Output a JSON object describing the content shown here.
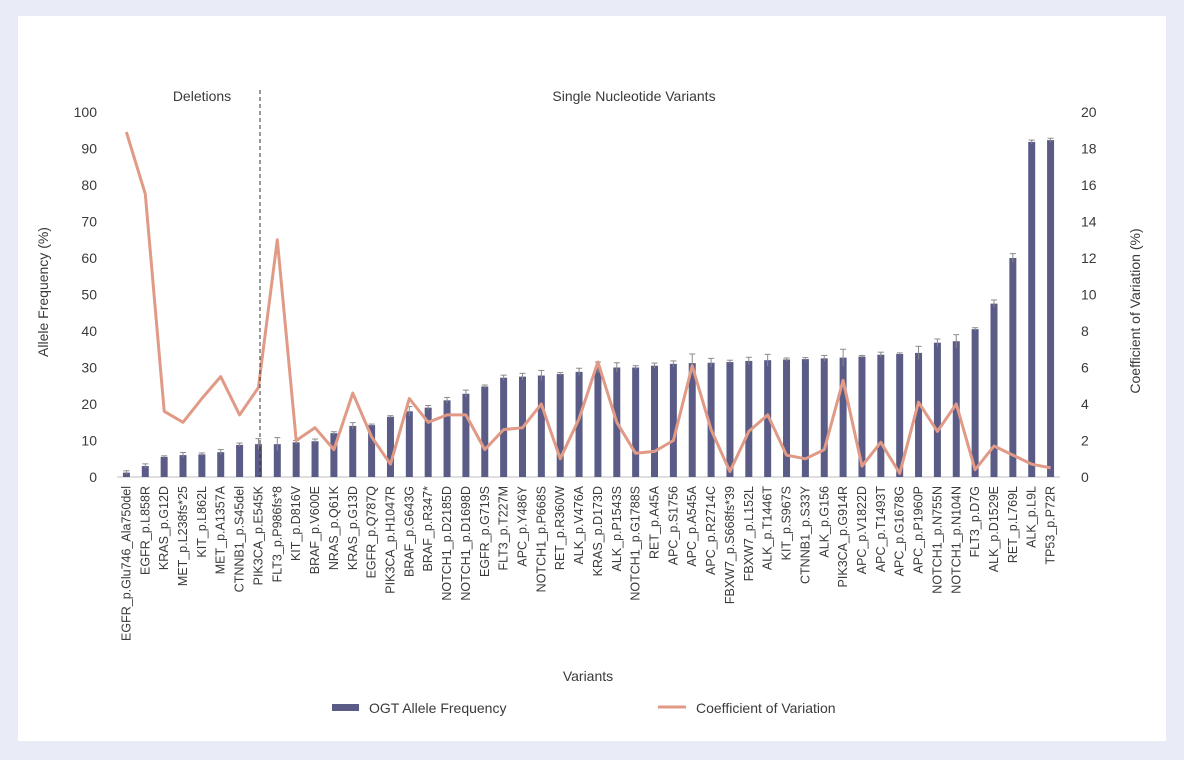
{
  "chart_data": {
    "type": "bar",
    "xlabel": "Variants",
    "ylabel": "Allele Frequency (%)",
    "y2label": "Coefficient of Variation (%)",
    "ylim": [
      0,
      100
    ],
    "y2lim": [
      0,
      20
    ],
    "yticks": [
      0,
      10,
      20,
      30,
      40,
      50,
      60,
      70,
      80,
      90,
      100
    ],
    "y2ticks": [
      0,
      2,
      4,
      6,
      8,
      10,
      12,
      14,
      16,
      18,
      20
    ],
    "grid": false,
    "legend_position": "bottom",
    "sections": [
      {
        "label": "Deletions",
        "end_index": 7
      },
      {
        "label": "Single Nucleotide Variants",
        "start_index": 8
      }
    ],
    "categories": [
      "EGFR_p.Glu746_Ala750del",
      "EGFR_p.L858R",
      "KRAS_p.G12D",
      "MET_p.L238fs*25",
      "KIT_p.L862L",
      "MET_p.A1357A",
      "CTNNB1_p.S45del",
      "PIK3CA_p.E545K",
      "FLT3_p.P986fs*8",
      "KIT_p.D816V",
      "BRAF_p.V600E",
      "NRAS_p.Q61K",
      "KRAS_p.G13D",
      "EGFR_p.Q787Q",
      "PIK3CA_p.H1047R",
      "BRAF_p.G643G",
      "BRAF_p.R347*",
      "NOTCH1_p.D2185D",
      "NOTCH1_p.D1698D",
      "EGFR_p.G719S",
      "FLT3_p.T227M",
      "APC_p.Y486Y",
      "NOTCH1_p.P668S",
      "RET_p.R360W",
      "ALK_p.V476A",
      "KRAS_p.D173D",
      "ALK_p.P1543S",
      "NOTCH1_p.G1788S",
      "RET_p.A45A",
      "APC_p.S1756",
      "APC_p.A545A",
      "APC_p.R2714C",
      "FBXW7_p.S668fs*39",
      "FBXW7_p.L152L",
      "ALK_p.T1446T",
      "KIT_p.S967S",
      "CTNNB1_p.S33Y",
      "ALK_p.G156",
      "PIK3CA_p.G914R",
      "APC_p.V1822D",
      "APC_p.T1493T",
      "APC_p.G1678G",
      "APC_p.P1960P",
      "NOTCH1_p.N755N",
      "NOTCH1_p.N104N",
      "FLT3_p.D7G",
      "ALK_p.D1529E",
      "RET_p.L769L",
      "ALK_p.L9L",
      "TP53_p.P72R"
    ],
    "series": [
      {
        "name": "OGT Allele Frequency",
        "kind": "bar",
        "axis": "left",
        "color": "#5a5b86",
        "values": [
          1.2,
          3.0,
          5.5,
          6.0,
          6.2,
          6.8,
          8.8,
          9.0,
          9.0,
          9.5,
          9.8,
          12.0,
          14.0,
          14.2,
          16.5,
          18.0,
          19.0,
          21.0,
          22.8,
          24.8,
          27.2,
          27.5,
          27.8,
          28.2,
          28.8,
          30.0,
          30.0,
          30.0,
          30.5,
          31.0,
          31.2,
          31.3,
          31.5,
          31.8,
          32.0,
          32.2,
          32.3,
          32.5,
          32.7,
          33.0,
          33.5,
          33.7,
          34.0,
          36.8,
          37.2,
          40.5,
          47.5,
          60.0,
          91.8,
          92.3
        ],
        "errors": [
          0.5,
          0.6,
          0.3,
          0.7,
          0.4,
          0.7,
          0.5,
          1.5,
          1.8,
          0.5,
          0.6,
          0.4,
          0.9,
          0.3,
          0.3,
          1.3,
          0.6,
          0.8,
          1.0,
          0.4,
          0.7,
          0.9,
          1.4,
          0.4,
          1.0,
          1.5,
          1.3,
          0.5,
          0.7,
          0.8,
          2.5,
          1.2,
          0.5,
          1.0,
          1.6,
          0.4,
          0.4,
          0.8,
          2.3,
          0.3,
          0.7,
          0.3,
          1.8,
          1.0,
          1.8,
          0.4,
          1.0,
          1.2,
          0.5,
          0.5
        ]
      },
      {
        "name": "Coefficient of Variation",
        "kind": "line",
        "axis": "right",
        "color": "#e09a86",
        "values": [
          18.9,
          15.5,
          3.6,
          3.0,
          4.3,
          5.5,
          3.4,
          4.9,
          13.0,
          2.0,
          2.7,
          1.5,
          4.6,
          2.2,
          0.7,
          4.3,
          3.0,
          3.4,
          3.4,
          1.5,
          2.6,
          2.7,
          4.0,
          1.0,
          3.2,
          6.3,
          3.0,
          1.3,
          1.4,
          2.0,
          6.1,
          2.6,
          0.3,
          2.5,
          3.4,
          1.2,
          1.0,
          1.5,
          5.3,
          0.6,
          1.9,
          0.2,
          4.1,
          2.5,
          4.0,
          0.4,
          1.7,
          1.2,
          0.7,
          0.5
        ]
      }
    ]
  }
}
